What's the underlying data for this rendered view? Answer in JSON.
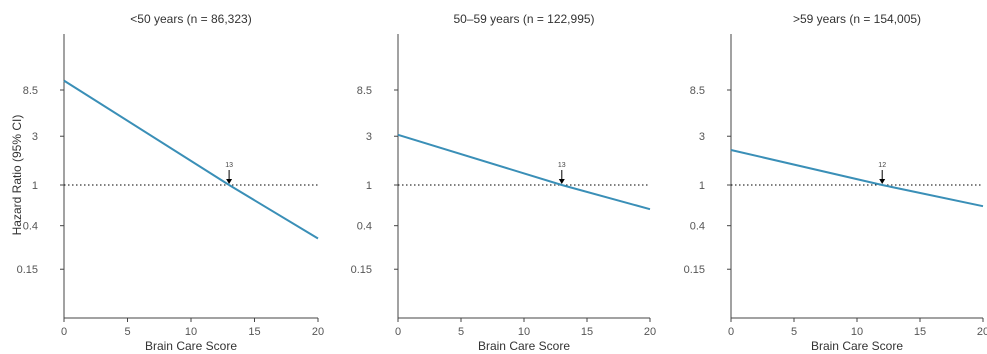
{
  "ylabel": "Hazard Ratio (95% CI)",
  "colors": {
    "line": "#3a8fb7",
    "axis": "#444444",
    "reference": "#000000"
  },
  "chart_data": [
    {
      "type": "line",
      "title": "<50 years (n = 86,323)",
      "xlabel": "Brain Care Score",
      "ylabel": "Hazard Ratio (95% CI)",
      "y_scale": "log",
      "xlim": [
        0,
        20
      ],
      "ylim": [
        0.05,
        30
      ],
      "x_ticks": [
        0,
        5,
        10,
        15,
        20
      ],
      "y_ticks": [
        0.15,
        0.4,
        1,
        3,
        8.5
      ],
      "x_tick_labels": [
        "0",
        "5",
        "10",
        "15",
        "20"
      ],
      "y_tick_labels": [
        "0.15",
        "0.4",
        "1",
        "3",
        "8.5"
      ],
      "reference_line": 1,
      "series": [
        {
          "x": [
            0,
            13,
            20
          ],
          "y": [
            10.5,
            1,
            0.3
          ]
        }
      ],
      "marker": {
        "x": 13,
        "label": "13"
      }
    },
    {
      "type": "line",
      "title": "50–59 years (n = 122,995)",
      "xlabel": "Brain Care Score",
      "ylabel": "",
      "y_scale": "log",
      "xlim": [
        0,
        20
      ],
      "ylim": [
        0.05,
        30
      ],
      "x_ticks": [
        0,
        5,
        10,
        15,
        20
      ],
      "y_ticks": [
        0.15,
        0.4,
        1,
        3,
        8.5
      ],
      "x_tick_labels": [
        "0",
        "5",
        "10",
        "15",
        "20"
      ],
      "y_tick_labels": [
        "0.15",
        "0.4",
        "1",
        "3",
        "8.5"
      ],
      "reference_line": 1,
      "series": [
        {
          "x": [
            0,
            13,
            20
          ],
          "y": [
            3.1,
            1,
            0.58
          ]
        }
      ],
      "marker": {
        "x": 13,
        "label": "13"
      }
    },
    {
      "type": "line",
      "title": ">59 years (n = 154,005)",
      "xlabel": "Brain Care Score",
      "ylabel": "",
      "y_scale": "log",
      "xlim": [
        0,
        20
      ],
      "ylim": [
        0.05,
        30
      ],
      "x_ticks": [
        0,
        5,
        10,
        15,
        20
      ],
      "y_ticks": [
        0.15,
        0.4,
        1,
        3,
        8.5
      ],
      "x_tick_labels": [
        "0",
        "5",
        "10",
        "15",
        "20"
      ],
      "y_tick_labels": [
        "0.15",
        "0.4",
        "1",
        "3",
        "8.5"
      ],
      "reference_line": 1,
      "series": [
        {
          "x": [
            0,
            12,
            20
          ],
          "y": [
            2.2,
            1,
            0.62
          ]
        }
      ],
      "marker": {
        "x": 12,
        "label": "12"
      }
    }
  ]
}
